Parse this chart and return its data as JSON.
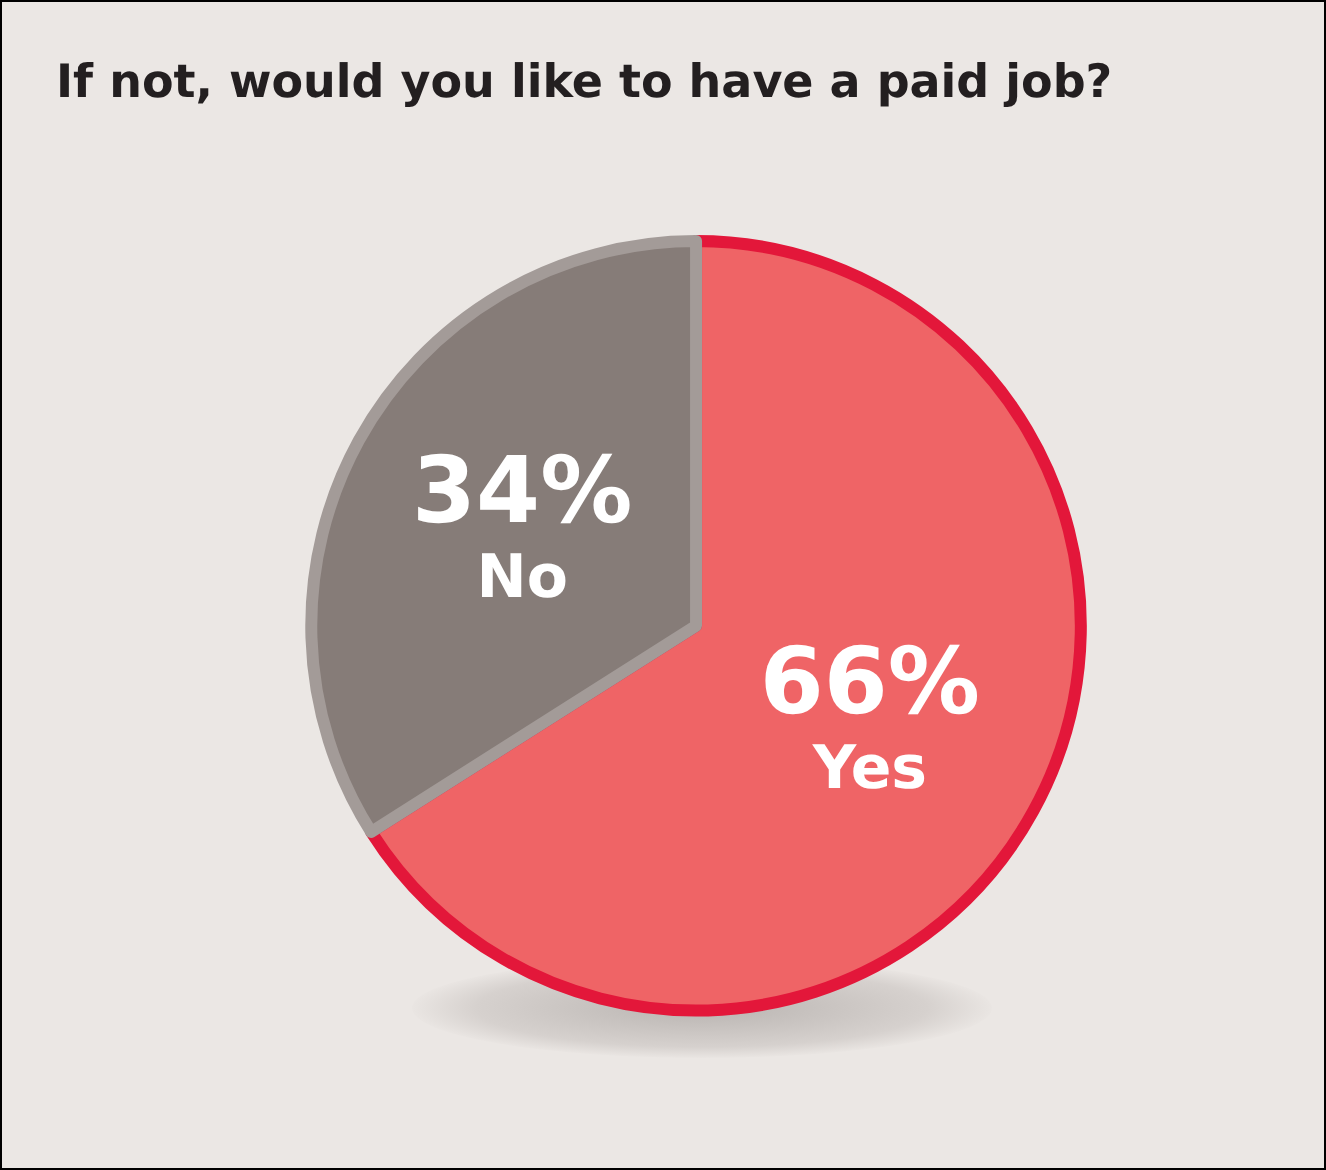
{
  "chart_data": {
    "type": "pie",
    "title": "If not, would you like to have a paid job?",
    "categories": [
      "Yes",
      "No"
    ],
    "values": [
      66,
      34
    ],
    "colors": [
      "#ef6466",
      "#867c78"
    ],
    "value_labels": [
      "66%",
      "34%"
    ],
    "legend": false
  }
}
